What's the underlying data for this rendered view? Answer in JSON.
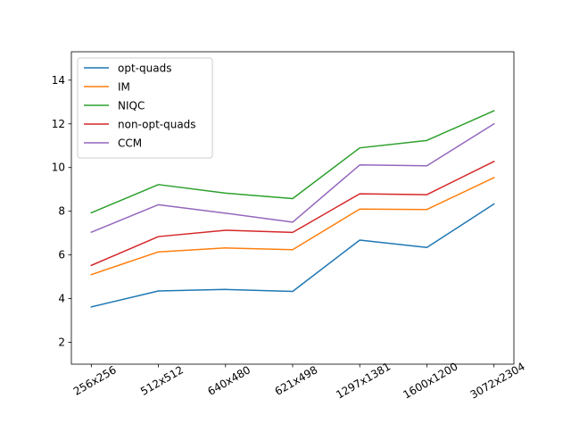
{
  "chart_data": {
    "type": "line",
    "categories": [
      "256x256",
      "512x512",
      "640x480",
      "621x498",
      "1297x1381",
      "1600x1200",
      "3072x2304"
    ],
    "ylim": [
      1,
      15.3
    ],
    "yticks": [
      2,
      4,
      6,
      8,
      10,
      12,
      14
    ],
    "title": "",
    "xlabel": "",
    "ylabel": "",
    "grid": false,
    "legend_position": "top-left",
    "series": [
      {
        "name": "opt-quads",
        "color": "#1f77b4",
        "values": [
          3.62,
          4.35,
          4.42,
          4.33,
          6.68,
          6.34,
          8.33
        ]
      },
      {
        "name": "IM",
        "color": "#ff7f0e",
        "values": [
          5.1,
          6.14,
          6.32,
          6.24,
          8.1,
          8.08,
          9.54
        ]
      },
      {
        "name": "NIQC",
        "color": "#2ca02c",
        "values": [
          7.93,
          9.22,
          8.83,
          8.58,
          10.9,
          11.24,
          12.6
        ]
      },
      {
        "name": "non-opt-quads",
        "color": "#d62728",
        "values": [
          5.52,
          6.84,
          7.13,
          7.03,
          8.8,
          8.76,
          10.28
        ]
      },
      {
        "name": "CCM",
        "color": "#9467bd",
        "values": [
          7.04,
          8.3,
          7.91,
          7.5,
          10.12,
          10.08,
          12.0
        ]
      }
    ]
  }
}
